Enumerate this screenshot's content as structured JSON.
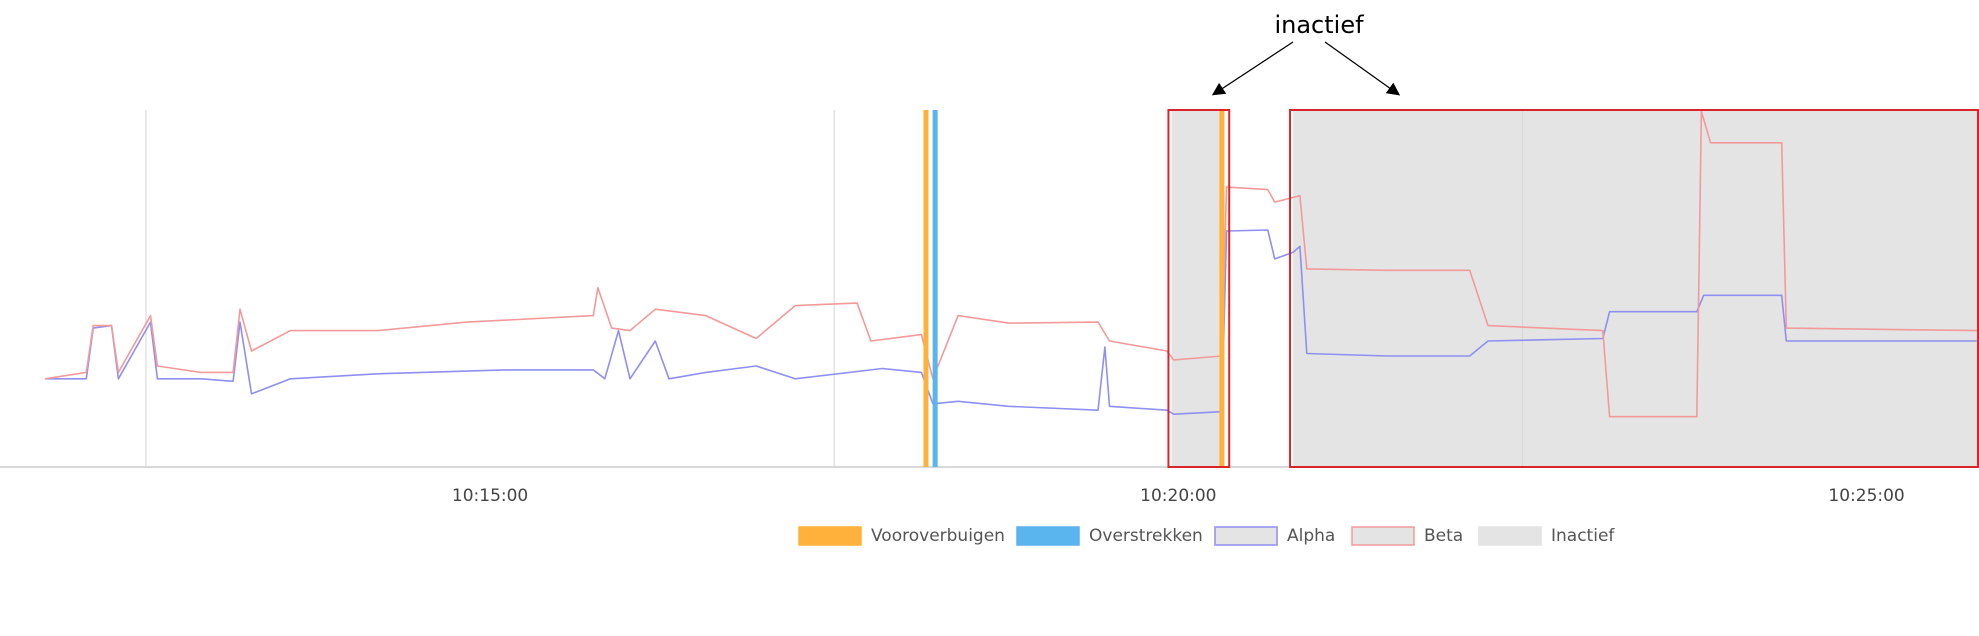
{
  "chart_data": {
    "type": "line",
    "annotation": "inactief",
    "xlim": [
      "10:11:46",
      "10:25:49"
    ],
    "xticks": [
      "10:15:00",
      "10:20:00",
      "10:25:00"
    ],
    "gridlines": [
      "10:12:30",
      "10:17:30",
      "10:22:30"
    ],
    "ylim": [
      0,
      100
    ],
    "events": [
      {
        "name": "Vooroverbuigen",
        "color": "#ffb13b",
        "x": [
          "10:18:10",
          "10:20:19"
        ]
      },
      {
        "name": "Overstrekken",
        "color": "#5ab4ee",
        "x": [
          "10:18:14"
        ]
      }
    ],
    "series": [
      {
        "name": "Alpha",
        "color": "#8f8ff2",
        "x": [
          "10:11:46",
          "10:12:04",
          "10:12:07",
          "10:12:15",
          "10:12:18",
          "10:12:32",
          "10:12:35",
          "10:12:54",
          "10:13:08",
          "10:13:11",
          "10:13:16",
          "10:13:33",
          "10:14:11",
          "10:15:06",
          "10:15:45",
          "10:15:50",
          "10:15:56",
          "10:16:01",
          "10:16:12",
          "10:16:18",
          "10:16:34",
          "10:16:56",
          "10:17:13",
          "10:17:51",
          "10:18:08",
          "10:18:13",
          "10:18:24",
          "10:18:46",
          "10:19:25",
          "10:19:28",
          "10:19:30",
          "10:19:55",
          "10:19:58",
          "10:20:19",
          "10:20:21",
          "10:20:39",
          "10:20:42",
          "10:20:50",
          "10:20:53",
          "10:20:56",
          "10:21:31",
          "10:22:07",
          "10:22:15",
          "10:23:05",
          "10:23:08",
          "10:23:46",
          "10:23:49",
          "10:24:23",
          "10:24:25",
          "10:25:49"
        ],
        "values": [
          24.7,
          24.7,
          38.9,
          39.6,
          24.7,
          40.6,
          24.7,
          24.7,
          24.0,
          40.6,
          20.5,
          24.7,
          26.1,
          27.2,
          27.2,
          24.7,
          38.2,
          24.7,
          35.3,
          24.7,
          26.5,
          28.3,
          24.7,
          27.6,
          26.5,
          17.7,
          18.4,
          17.0,
          15.9,
          33.6,
          17.0,
          15.9,
          14.8,
          15.5,
          66.1,
          66.4,
          58.3,
          60.1,
          61.8,
          31.8,
          31.1,
          31.1,
          35.3,
          36.0,
          43.5,
          43.5,
          48.1,
          48.1,
          35.3,
          35.3
        ]
      },
      {
        "name": "Beta",
        "color": "#f29a9a",
        "x": [
          "10:11:46",
          "10:12:04",
          "10:12:07",
          "10:12:15",
          "10:12:18",
          "10:12:32",
          "10:12:35",
          "10:12:54",
          "10:13:08",
          "10:13:11",
          "10:13:16",
          "10:13:33",
          "10:14:11",
          "10:14:50",
          "10:15:45",
          "10:15:47",
          "10:15:53",
          "10:16:01",
          "10:16:12",
          "10:16:34",
          "10:16:56",
          "10:17:13",
          "10:17:40",
          "10:17:46",
          "10:18:08",
          "10:18:13",
          "10:18:24",
          "10:18:46",
          "10:19:25",
          "10:19:30",
          "10:19:55",
          "10:19:58",
          "10:20:19",
          "10:20:21",
          "10:20:39",
          "10:20:42",
          "10:20:53",
          "10:20:56",
          "10:21:31",
          "10:22:07",
          "10:22:15",
          "10:23:05",
          "10:23:08",
          "10:23:46",
          "10:23:48",
          "10:23:52",
          "10:24:23",
          "10:24:25",
          "10:25:49"
        ],
        "values": [
          24.7,
          26.5,
          39.6,
          39.6,
          26.5,
          42.4,
          28.3,
          26.5,
          26.5,
          44.2,
          32.5,
          38.2,
          38.2,
          40.6,
          42.4,
          50.2,
          38.9,
          38.2,
          44.2,
          42.4,
          36.0,
          45.2,
          45.9,
          35.3,
          37.1,
          24.7,
          42.4,
          40.3,
          40.6,
          35.3,
          32.5,
          30.0,
          31.1,
          78.4,
          77.7,
          74.2,
          76.0,
          55.5,
          55.1,
          55.1,
          39.6,
          38.2,
          14.1,
          14.1,
          99.6,
          90.8,
          90.8,
          38.9,
          38.2
        ]
      }
    ],
    "inactive": {
      "name": "Inactief",
      "color": "#e4e4e4",
      "ranges": [
        [
          "10:19:57",
          "10:20:20"
        ],
        [
          "10:20:50",
          "10:25:49"
        ]
      ]
    }
  }
}
